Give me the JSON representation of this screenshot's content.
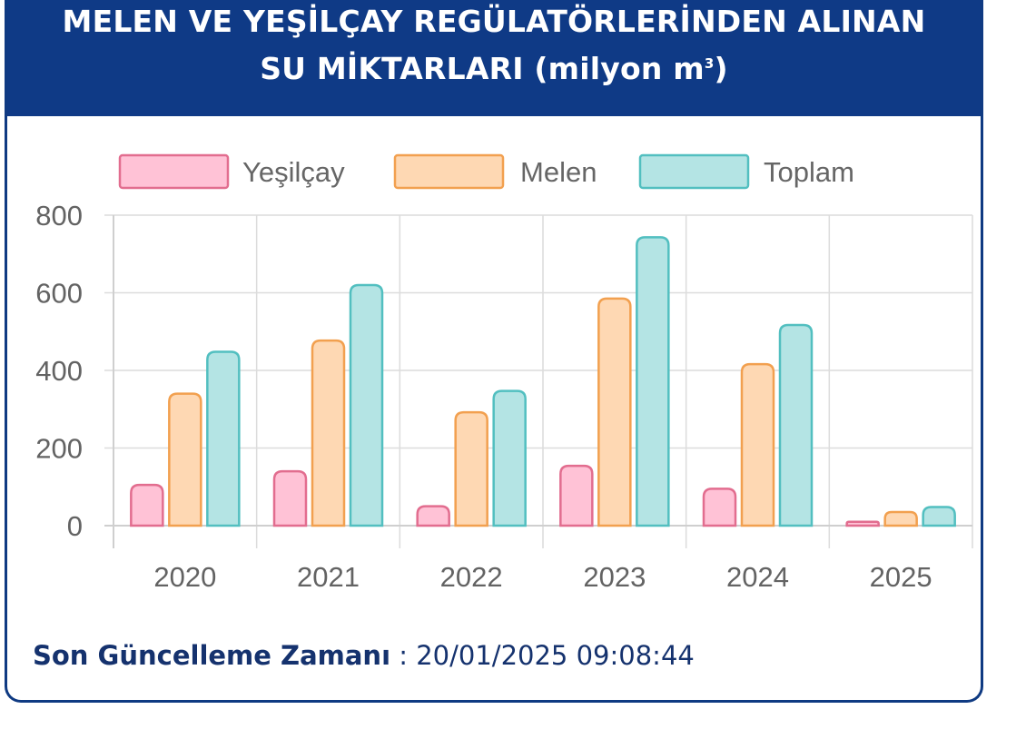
{
  "header": {
    "title_line1": "MELEN VE YEŞİLÇAY REGÜLATÖRLERİNDEN ALINAN",
    "title_line2_prefix": "SU MİKTARLARI (milyon m",
    "title_line2_sup": "3",
    "title_line2_suffix": ")"
  },
  "chart_data": {
    "type": "bar",
    "title": "MELEN VE YEŞİLÇAY REGÜLATÖRLERİNDEN ALINAN SU MİKTARLARI (milyon m³)",
    "categories": [
      "2020",
      "2021",
      "2022",
      "2023",
      "2024",
      "2025"
    ],
    "series": [
      {
        "name": "Yeşilçay",
        "values": [
          105,
          140,
          50,
          154,
          95,
          10
        ],
        "color": "#ffc2d6",
        "border": "#e26d8f"
      },
      {
        "name": "Melen",
        "values": [
          340,
          477,
          292,
          585,
          416,
          35
        ],
        "color": "#fed8b3",
        "border": "#f2a04f"
      },
      {
        "name": "Toplam",
        "values": [
          448,
          620,
          347,
          743,
          517,
          48
        ],
        "color": "#b4e4e4",
        "border": "#52bfc0"
      }
    ],
    "y_ticks": [
      "0",
      "200",
      "400",
      "600",
      "800"
    ],
    "ylim": [
      0,
      800
    ],
    "grid": true,
    "legend_position": "top"
  },
  "footer": {
    "label": "Son Güncelleme Zamanı",
    "separator": " : ",
    "timestamp": "20/01/2025 09:08:44"
  }
}
